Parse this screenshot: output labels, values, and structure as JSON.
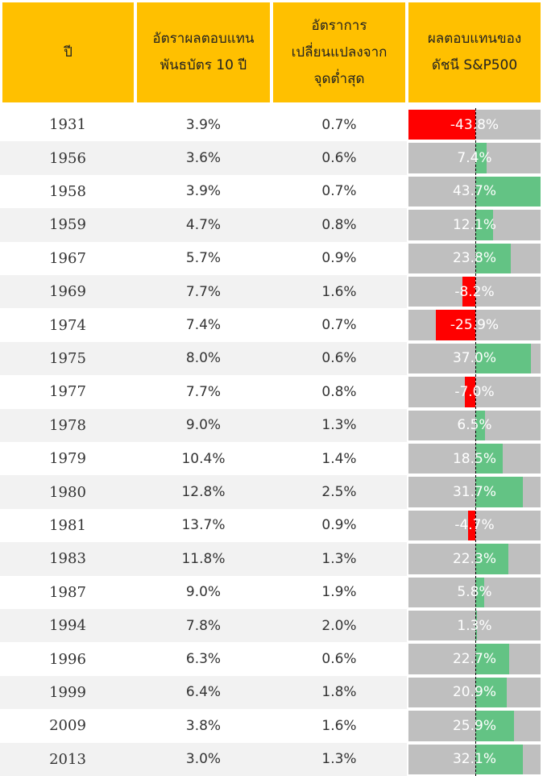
{
  "table": {
    "headers": [
      "ปี",
      "อัตราผลตอบแทน\nพันธบัตร 10 ปี",
      "อัตราการ\nเปลี่ยนแปลงจาก\nจุดต่ำสุด",
      "ผลตอบแทนของ\nดัชนี S&P500"
    ]
  },
  "chart_data": {
    "type": "bar",
    "orientation": "horizontal",
    "categories": [
      "1931",
      "1956",
      "1958",
      "1959",
      "1967",
      "1969",
      "1974",
      "1975",
      "1977",
      "1978",
      "1979",
      "1980",
      "1981",
      "1983",
      "1987",
      "1994",
      "1996",
      "1999",
      "2009",
      "2013"
    ],
    "bond_yield": [
      "3.9%",
      "3.6%",
      "3.9%",
      "4.7%",
      "5.7%",
      "7.7%",
      "7.4%",
      "8.0%",
      "7.7%",
      "9.0%",
      "10.4%",
      "12.8%",
      "13.7%",
      "11.8%",
      "9.0%",
      "7.8%",
      "6.3%",
      "6.4%",
      "3.8%",
      "3.0%"
    ],
    "change_from_low": [
      "0.7%",
      "0.6%",
      "0.7%",
      "0.8%",
      "0.9%",
      "1.6%",
      "0.7%",
      "0.6%",
      "0.8%",
      "1.3%",
      "1.4%",
      "2.5%",
      "0.9%",
      "1.3%",
      "1.9%",
      "2.0%",
      "0.6%",
      "1.8%",
      "1.6%",
      "1.3%"
    ],
    "values": [
      -43.8,
      7.4,
      43.7,
      12.1,
      23.8,
      -8.2,
      -25.9,
      37.0,
      -7.0,
      6.5,
      18.5,
      31.7,
      -4.7,
      22.3,
      5.8,
      1.3,
      22.7,
      20.9,
      25.9,
      32.1
    ],
    "value_labels": [
      "-43.8%",
      "7.4%",
      "43.7%",
      "12.1%",
      "23.8%",
      "-8.2%",
      "-25.9%",
      "37.0%",
      "-7.0%",
      "6.5%",
      "18.5%",
      "31.7%",
      "-4.7%",
      "22.3%",
      "5.8%",
      "1.3%",
      "22.7%",
      "20.9%",
      "25.9%",
      "32.1%"
    ],
    "xlim": [
      -43.8,
      43.7
    ],
    "colors": {
      "positive": "#63C384",
      "negative": "#FF0000",
      "background": "#BFBFBF",
      "header": "#FFC000"
    }
  }
}
